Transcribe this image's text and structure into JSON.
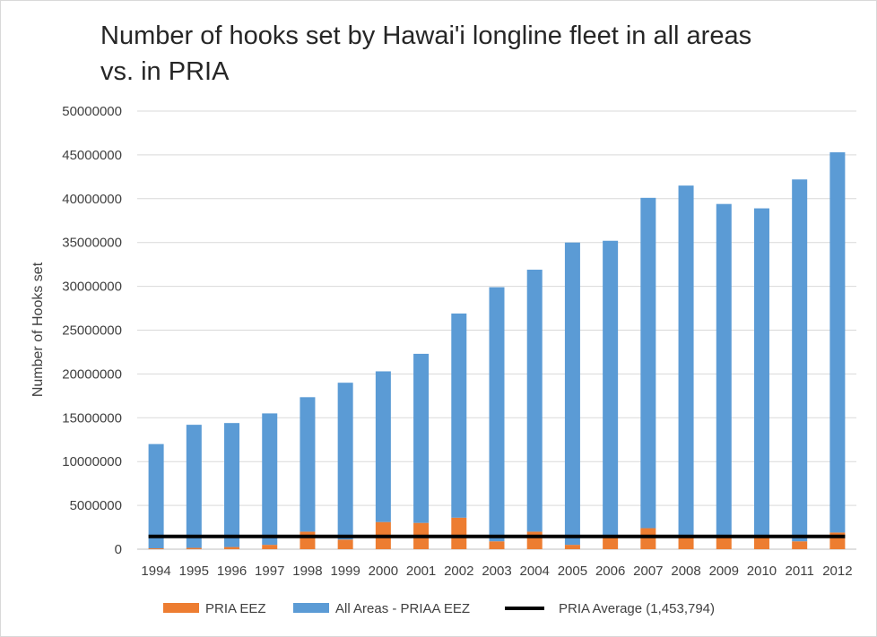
{
  "chart_data": {
    "type": "bar",
    "stacked": true,
    "title_line1": "Number of hooks set by Hawai'i longline fleet in all areas",
    "title_line2": "vs. in PRIA",
    "ylabel": "Number of Hooks set",
    "xlabel": "",
    "ylim": [
      0,
      50000000
    ],
    "ytick_step": 5000000,
    "grid": true,
    "legend_position": "bottom",
    "categories": [
      "1994",
      "1995",
      "1996",
      "1997",
      "1998",
      "1999",
      "2000",
      "2001",
      "2002",
      "2003",
      "2004",
      "2005",
      "2006",
      "2007",
      "2008",
      "2009",
      "2010",
      "2011",
      "2012"
    ],
    "series": [
      {
        "name": "PRIA EEZ",
        "color": "#ed7d31",
        "values": [
          100000,
          150000,
          250000,
          500000,
          2000000,
          1100000,
          3100000,
          3000000,
          3600000,
          900000,
          2000000,
          500000,
          1600000,
          2400000,
          1400000,
          1400000,
          1500000,
          900000,
          1900000
        ]
      },
      {
        "name": "All Areas - PRIAA EEZ",
        "color": "#5b9bd5",
        "values": [
          11900000,
          14050000,
          14150000,
          15000000,
          15350000,
          17900000,
          17200000,
          19300000,
          23300000,
          29000000,
          29900000,
          34500000,
          33600000,
          37700000,
          40100000,
          38000000,
          37400000,
          41300000,
          43400000
        ]
      }
    ],
    "reference_line": {
      "name": "PRIA Average (1,453,794)",
      "value": 1453794,
      "color": "#000000"
    }
  }
}
